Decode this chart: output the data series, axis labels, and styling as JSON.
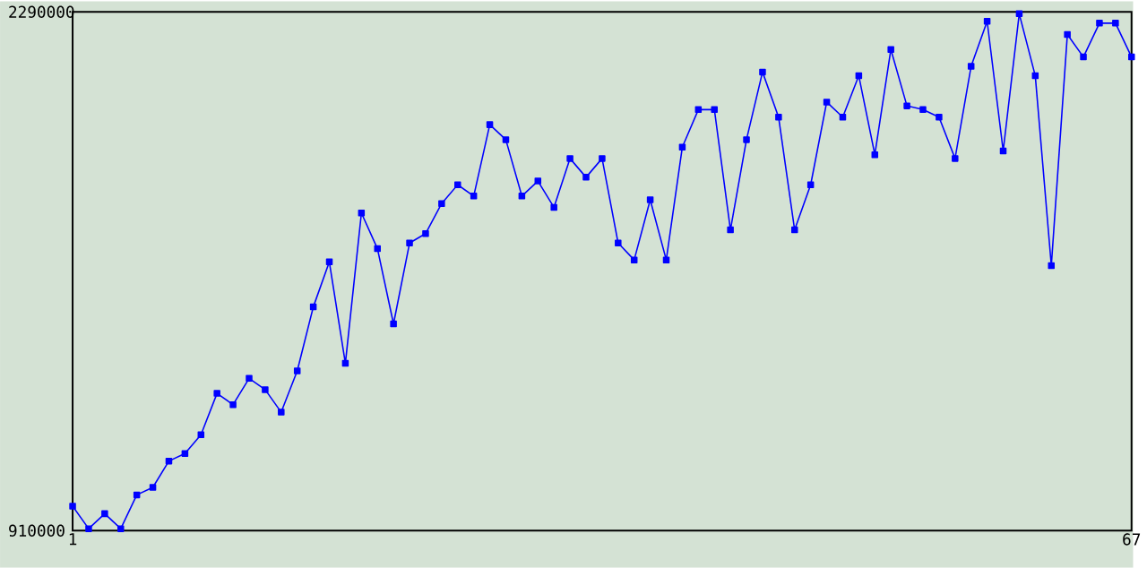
{
  "chart_data": {
    "type": "line",
    "x": [
      1,
      2,
      3,
      4,
      5,
      6,
      7,
      8,
      9,
      10,
      11,
      12,
      13,
      14,
      15,
      16,
      17,
      18,
      19,
      20,
      21,
      22,
      23,
      24,
      25,
      26,
      27,
      28,
      29,
      30,
      31,
      32,
      33,
      34,
      35,
      36,
      37,
      38,
      39,
      40,
      41,
      42,
      43,
      44,
      45,
      46,
      47,
      48,
      49,
      50,
      51,
      52,
      53,
      54,
      55,
      56,
      57,
      58,
      59,
      60,
      61,
      62,
      63,
      64,
      65,
      66,
      67
    ],
    "series": [
      {
        "color": "#0000ff",
        "values": [
          975000,
          915000,
          955000,
          915000,
          1005000,
          1025000,
          1095000,
          1115000,
          1165000,
          1275000,
          1245000,
          1315000,
          1285000,
          1225000,
          1335000,
          1505000,
          1625000,
          1355000,
          1755000,
          1660000,
          1460000,
          1675000,
          1700000,
          1780000,
          1830000,
          1800000,
          1990000,
          1950000,
          1800000,
          1840000,
          1770000,
          1900000,
          1850000,
          1900000,
          1675000,
          1630000,
          1790000,
          1630000,
          1930000,
          2030000,
          2030000,
          1710000,
          1950000,
          2130000,
          2010000,
          1710000,
          1830000,
          2050000,
          2010000,
          2120000,
          1910000,
          2190000,
          2040000,
          2030000,
          2010000,
          1900000,
          2145000,
          2265000,
          1920000,
          2285000,
          2120000,
          1615000,
          2230000,
          2170000,
          2260000,
          2260000,
          2170000
        ]
      }
    ],
    "xlim": [
      1,
      67
    ],
    "ylim": [
      910000,
      2290000
    ],
    "xticks": [
      1,
      67
    ],
    "yticks": [
      910000,
      2290000
    ],
    "marker": "square",
    "line_style": "solid"
  }
}
